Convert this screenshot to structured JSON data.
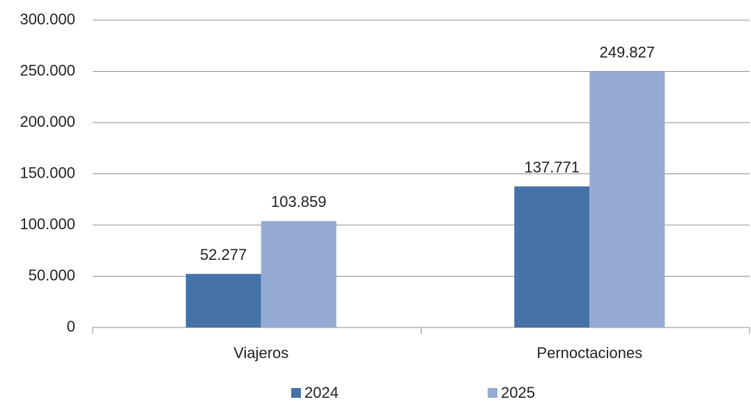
{
  "chart_data": {
    "type": "bar",
    "categories": [
      "Viajeros",
      "Pernoctaciones"
    ],
    "series": [
      {
        "name": "2024",
        "color": "#4572a7",
        "values": [
          52277,
          137771
        ],
        "value_labels": [
          "52.277",
          "137.771"
        ]
      },
      {
        "name": "2025",
        "color": "#96abd3",
        "values": [
          103859,
          249827
        ],
        "value_labels": [
          "103.859",
          "249.827"
        ]
      }
    ],
    "ylim": [
      0,
      300000
    ],
    "yticks": [
      0,
      {
        "value": 50000,
        "label": "50.000"
      },
      {
        "value": 100000,
        "label": "100.000"
      },
      {
        "value": 150000,
        "label": "150.000"
      },
      {
        "value": 200000,
        "label": "200.000"
      },
      {
        "value": 250000,
        "label": "250.000"
      },
      {
        "value": 300000,
        "label": "300.000"
      }
    ],
    "grid": true,
    "legend": "bottom"
  }
}
